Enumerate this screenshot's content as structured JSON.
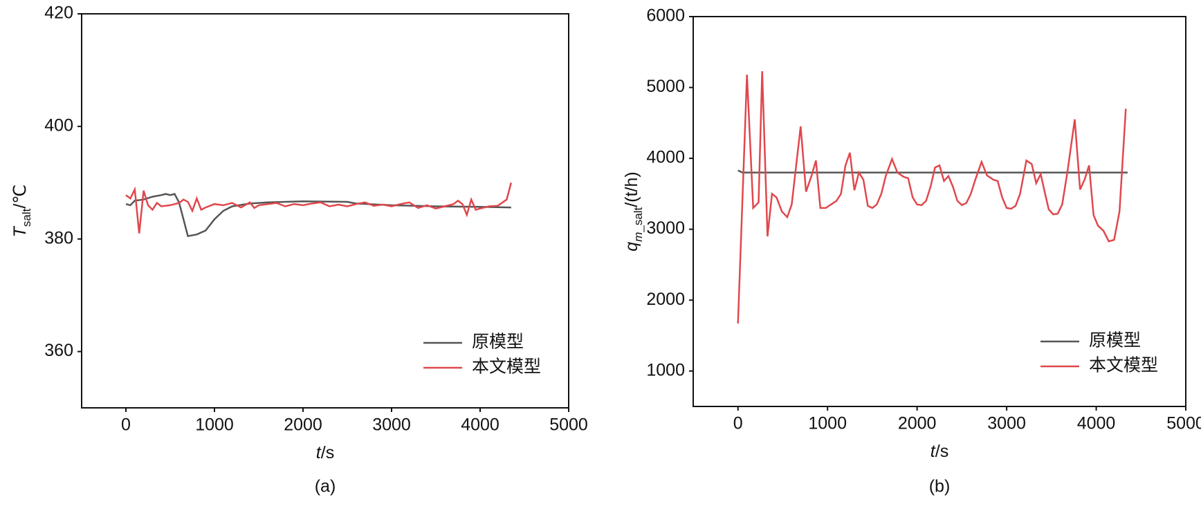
{
  "chart_data": [
    {
      "type": "line",
      "caption": "(a)",
      "xlabel": [
        "t",
        "/s"
      ],
      "xlabel_format": [
        "italic",
        "normal"
      ],
      "ylabel": [
        "T",
        "salt",
        "/℃"
      ],
      "ylabel_format": [
        "italic",
        "sub",
        "normal"
      ],
      "xlim": [
        -500,
        5000
      ],
      "xticks": [
        0,
        1000,
        2000,
        3000,
        4000,
        5000
      ],
      "ylim": [
        350,
        420
      ],
      "yticks": [
        360,
        380,
        400,
        420
      ],
      "legend": "lower right",
      "series": [
        {
          "name": "原模型",
          "color": "#555555",
          "x": [
            0,
            50,
            100,
            200,
            300,
            400,
            450,
            500,
            550,
            600,
            700,
            800,
            900,
            1000,
            1100,
            1200,
            1400,
            1600,
            2000,
            2500,
            2600,
            3000,
            3500,
            4000,
            4350
          ],
          "values": [
            386.2,
            386,
            386.8,
            387,
            387.5,
            387.8,
            388,
            387.8,
            388,
            386.5,
            380.5,
            380.8,
            381.5,
            383.5,
            385,
            385.8,
            386.3,
            386.5,
            386.7,
            386.6,
            386.3,
            386,
            385.8,
            385.7,
            385.6
          ]
        },
        {
          "name": "本文模型",
          "color": "#e0474c",
          "x": [
            0,
            50,
            100,
            150,
            200,
            250,
            300,
            350,
            400,
            500,
            600,
            650,
            700,
            750,
            800,
            850,
            900,
            1000,
            1100,
            1200,
            1300,
            1400,
            1450,
            1500,
            1600,
            1700,
            1800,
            1900,
            2000,
            2100,
            2200,
            2300,
            2400,
            2500,
            2600,
            2700,
            2800,
            2900,
            3000,
            3100,
            3200,
            3300,
            3400,
            3500,
            3600,
            3700,
            3750,
            3800,
            3850,
            3900,
            3950,
            4000,
            4100,
            4200,
            4300,
            4350
          ],
          "values": [
            387.8,
            387.2,
            388.8,
            381,
            388.6,
            386,
            385.2,
            386.4,
            385.8,
            386,
            386.4,
            387,
            386.6,
            385,
            387.2,
            385.2,
            385.6,
            386.2,
            386,
            386.4,
            385.6,
            386.5,
            385.5,
            386,
            386.2,
            386.4,
            385.8,
            386.2,
            386,
            386.3,
            386.5,
            385.8,
            386.1,
            385.8,
            386.2,
            386.5,
            385.9,
            386.1,
            385.8,
            386.2,
            386.5,
            385.5,
            386,
            385.4,
            385.8,
            386.2,
            386.8,
            386.2,
            384.3,
            387,
            385.2,
            385.4,
            385.8,
            385.9,
            387,
            390
          ]
        }
      ]
    },
    {
      "type": "line",
      "caption": "(b)",
      "xlabel": [
        "t",
        "/s"
      ],
      "xlabel_format": [
        "italic",
        "normal"
      ],
      "ylabel": [
        "q",
        "m",
        "_salt",
        "/(t/h)"
      ],
      "ylabel_format": [
        "italic",
        "sub-italic",
        "sub",
        "normal"
      ],
      "xlim": [
        -500,
        5000
      ],
      "xticks": [
        0,
        1000,
        2000,
        3000,
        4000,
        5000
      ],
      "ylim": [
        500,
        6000
      ],
      "yticks": [
        1000,
        2000,
        3000,
        4000,
        5000,
        6000
      ],
      "legend": "lower right",
      "series": [
        {
          "name": "原模型",
          "color": "#555555",
          "x": [
            0,
            50,
            4350
          ],
          "values": [
            3830,
            3800,
            3800
          ]
        },
        {
          "name": "本文模型",
          "color": "#e0474c",
          "x": [
            0,
            100,
            170,
            230,
            270,
            330,
            380,
            430,
            490,
            550,
            600,
            700,
            760,
            820,
            870,
            920,
            980,
            1040,
            1100,
            1150,
            1200,
            1250,
            1300,
            1350,
            1400,
            1450,
            1500,
            1550,
            1600,
            1650,
            1720,
            1780,
            1850,
            1900,
            1950,
            2000,
            2050,
            2100,
            2150,
            2200,
            2250,
            2300,
            2350,
            2400,
            2450,
            2500,
            2550,
            2600,
            2650,
            2720,
            2780,
            2850,
            2900,
            2950,
            3000,
            3050,
            3100,
            3150,
            3220,
            3280,
            3330,
            3380,
            3420,
            3470,
            3520,
            3570,
            3620,
            3680,
            3760,
            3820,
            3870,
            3920,
            3970,
            4020,
            4080,
            4140,
            4200,
            4260,
            4330
          ],
          "values": [
            1670,
            5180,
            3300,
            3380,
            5230,
            2900,
            3500,
            3450,
            3250,
            3170,
            3350,
            4450,
            3530,
            3750,
            3970,
            3300,
            3300,
            3350,
            3400,
            3500,
            3900,
            4080,
            3550,
            3800,
            3700,
            3330,
            3300,
            3350,
            3500,
            3750,
            3990,
            3800,
            3740,
            3720,
            3450,
            3350,
            3340,
            3400,
            3600,
            3870,
            3900,
            3680,
            3750,
            3600,
            3400,
            3340,
            3370,
            3500,
            3700,
            3950,
            3760,
            3700,
            3680,
            3450,
            3300,
            3290,
            3330,
            3500,
            3970,
            3920,
            3650,
            3780,
            3550,
            3280,
            3210,
            3220,
            3350,
            3820,
            4550,
            3560,
            3700,
            3900,
            3200,
            3050,
            2980,
            2830,
            2850,
            3250,
            4700
          ]
        }
      ]
    }
  ]
}
